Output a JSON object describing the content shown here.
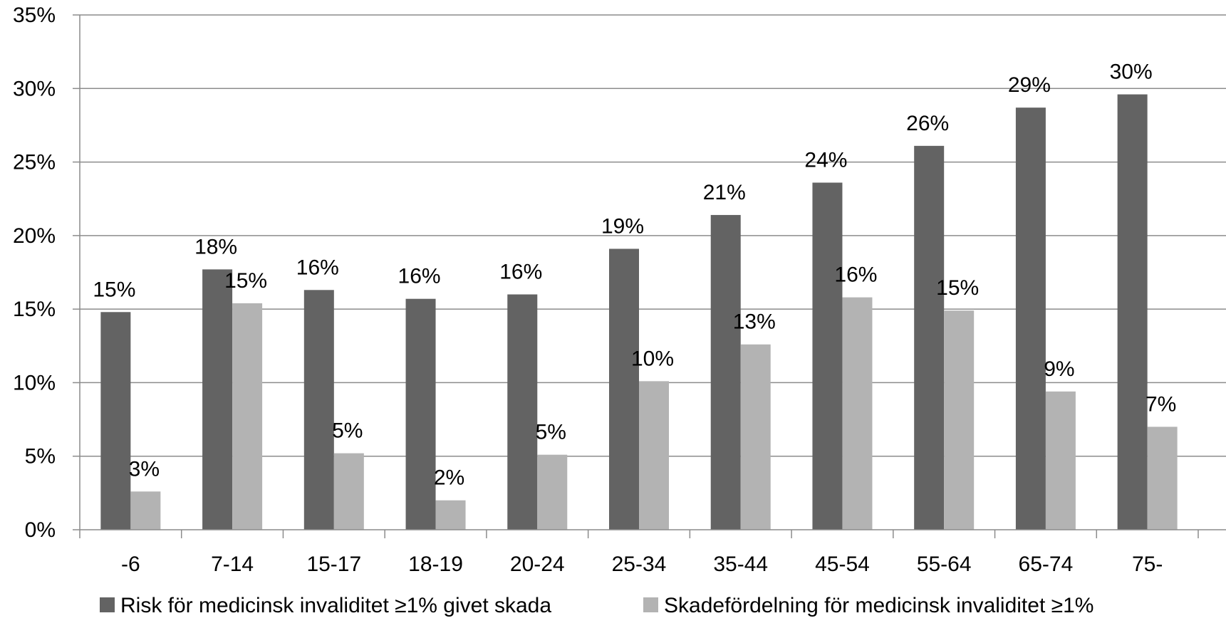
{
  "chart_data": {
    "type": "bar",
    "categories": [
      "-6",
      "7-14",
      "15-17",
      "18-19",
      "20-24",
      "25-34",
      "35-44",
      "45-54",
      "55-64",
      "65-74",
      "75-"
    ],
    "series": [
      {
        "name": "Risk för medicinsk invaliditet ≥1% givet skada",
        "color": "#636363",
        "values": [
          14.8,
          17.7,
          16.3,
          15.7,
          16.0,
          19.1,
          21.4,
          23.6,
          26.1,
          28.7,
          29.6
        ],
        "labels": [
          "15%",
          "18%",
          "16%",
          "16%",
          "16%",
          "19%",
          "21%",
          "24%",
          "26%",
          "29%",
          "30%"
        ]
      },
      {
        "name": "Skadefördelning för medicinsk invaliditet ≥1%",
        "color": "#b3b3b3",
        "values": [
          2.6,
          15.4,
          5.2,
          2.0,
          5.1,
          10.1,
          12.6,
          15.8,
          14.9,
          9.4,
          7.0
        ],
        "labels": [
          "3%",
          "15%",
          "5%",
          "2%",
          "5%",
          "10%",
          "13%",
          "16%",
          "15%",
          "9%",
          "7%"
        ]
      }
    ],
    "ylim": [
      0,
      35
    ],
    "yticks": [
      "0%",
      "5%",
      "10%",
      "15%",
      "20%",
      "25%",
      "30%",
      "35%"
    ],
    "grid": true,
    "legend_position": "bottom",
    "title": "",
    "xlabel": "",
    "ylabel": ""
  }
}
